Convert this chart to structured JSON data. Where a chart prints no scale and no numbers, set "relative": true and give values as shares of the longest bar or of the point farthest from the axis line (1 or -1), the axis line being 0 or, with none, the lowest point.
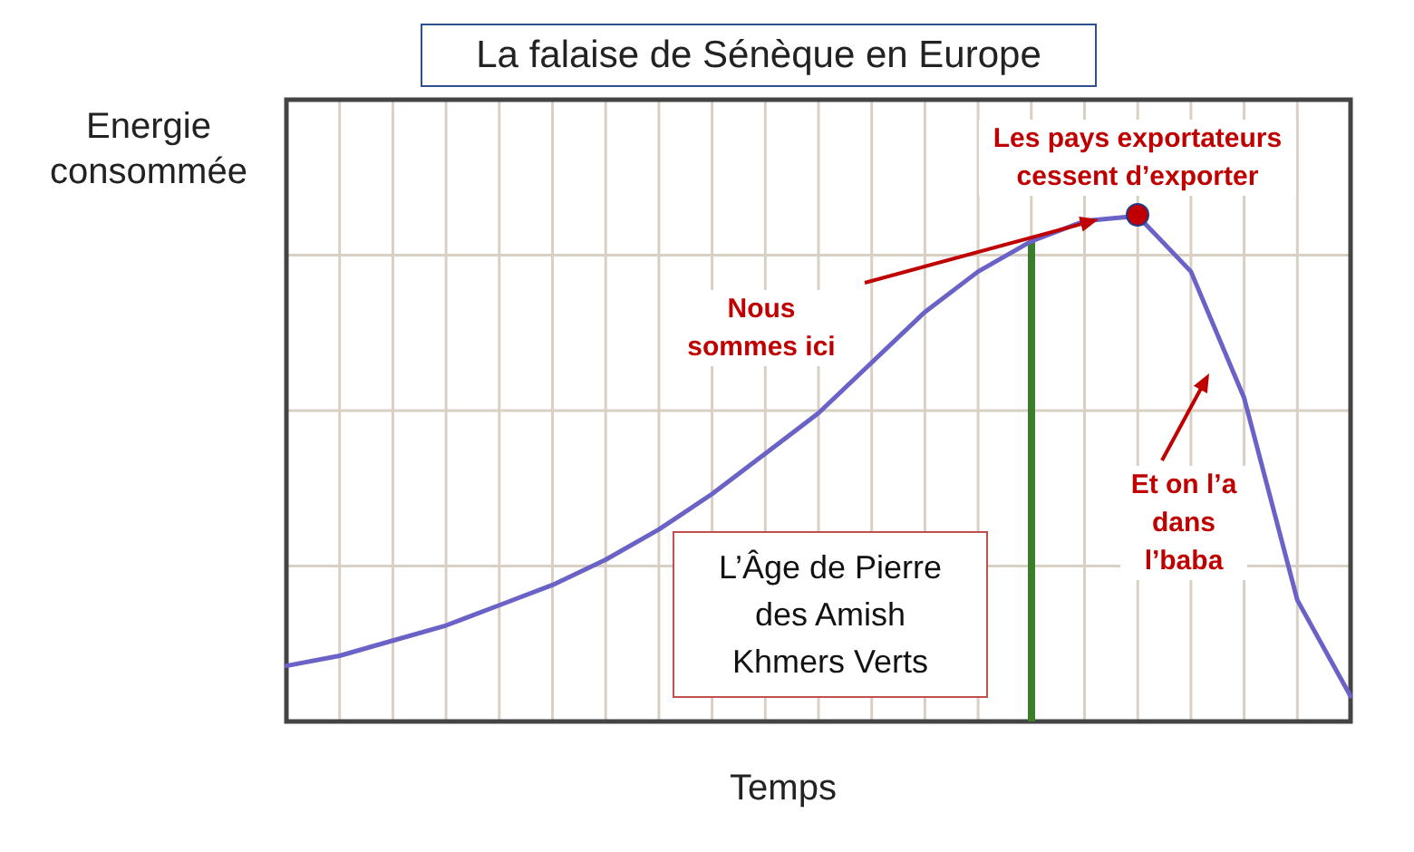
{
  "chart_data": {
    "type": "line",
    "title": "La falaise de Sénèque en Europe",
    "xlabel": "Temps",
    "ylabel": "Energie consommée",
    "relative": true,
    "grid": true,
    "categories": [
      null,
      null,
      null,
      null,
      null,
      null,
      null,
      null,
      null,
      null,
      null,
      null,
      null,
      null,
      null,
      null,
      null,
      null,
      null,
      null,
      null
    ],
    "series": [
      {
        "color": "#6b62c8",
        "values": [
          0.11,
          0.13,
          0.16,
          0.19,
          0.23,
          0.27,
          0.32,
          0.38,
          0.45,
          0.53,
          0.61,
          0.71,
          0.81,
          0.89,
          0.95,
          0.99,
          1,
          0.89,
          0.64,
          0.24,
          0.05
        ]
      }
    ],
    "annotations": [
      "Nous\nsommes ici",
      "Les pays exportateurs\ncessent d’exporter",
      "Et on l’a\ndans\nl’baba",
      "L’Âge de Pierre\ndes Amish\nKhmers Verts"
    ]
  }
}
